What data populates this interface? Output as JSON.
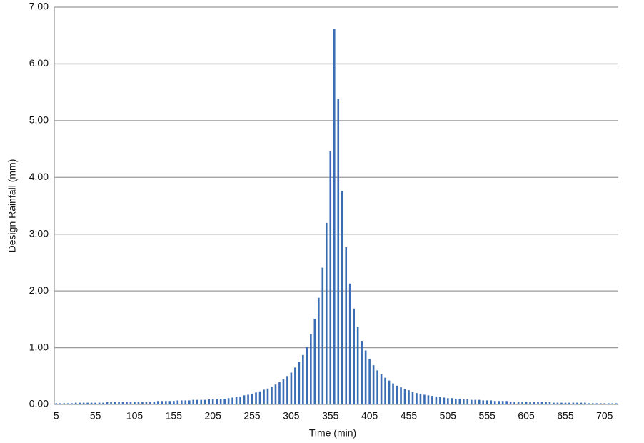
{
  "chart_data": {
    "type": "bar",
    "x_label": "Time (min)",
    "y_label": "Design Rainfall (mm)",
    "categories": [
      "5",
      null,
      null,
      null,
      null,
      null,
      null,
      null,
      null,
      null,
      "55",
      null,
      null,
      null,
      null,
      null,
      null,
      null,
      null,
      null,
      "105",
      null,
      null,
      null,
      null,
      null,
      null,
      null,
      null,
      null,
      "155",
      null,
      null,
      null,
      null,
      null,
      null,
      null,
      null,
      null,
      "205",
      null,
      null,
      null,
      null,
      null,
      null,
      null,
      null,
      null,
      "255",
      null,
      null,
      null,
      null,
      null,
      null,
      null,
      null,
      null,
      "305",
      null,
      null,
      null,
      null,
      null,
      null,
      null,
      null,
      null,
      "355",
      null,
      null,
      null,
      null,
      null,
      null,
      null,
      null,
      null,
      "405",
      null,
      null,
      null,
      null,
      null,
      null,
      null,
      null,
      null,
      "455",
      null,
      null,
      null,
      null,
      null,
      null,
      null,
      null,
      null,
      "505",
      null,
      null,
      null,
      null,
      null,
      null,
      null,
      null,
      null,
      "555",
      null,
      null,
      null,
      null,
      null,
      null,
      null,
      null,
      null,
      "605",
      null,
      null,
      null,
      null,
      null,
      null,
      null,
      null,
      null,
      "655",
      null,
      null,
      null,
      null,
      null,
      null,
      null,
      null,
      null,
      "705",
      null,
      null,
      null
    ],
    "values": [
      0.02,
      0.02,
      0.02,
      0.02,
      0.02,
      0.03,
      0.03,
      0.03,
      0.03,
      0.03,
      0.03,
      0.03,
      0.03,
      0.04,
      0.04,
      0.04,
      0.04,
      0.04,
      0.04,
      0.04,
      0.05,
      0.05,
      0.05,
      0.05,
      0.05,
      0.05,
      0.06,
      0.06,
      0.06,
      0.06,
      0.06,
      0.07,
      0.07,
      0.07,
      0.07,
      0.08,
      0.08,
      0.08,
      0.08,
      0.09,
      0.09,
      0.09,
      0.1,
      0.1,
      0.11,
      0.12,
      0.13,
      0.14,
      0.16,
      0.17,
      0.19,
      0.21,
      0.23,
      0.26,
      0.28,
      0.31,
      0.35,
      0.39,
      0.44,
      0.5,
      0.56,
      0.65,
      0.75,
      0.87,
      1.02,
      1.24,
      1.51,
      1.88,
      2.41,
      3.2,
      4.46,
      6.62,
      5.38,
      3.76,
      2.77,
      2.13,
      1.69,
      1.37,
      1.12,
      0.95,
      0.8,
      0.69,
      0.6,
      0.53,
      0.47,
      0.42,
      0.37,
      0.33,
      0.3,
      0.27,
      0.25,
      0.22,
      0.2,
      0.19,
      0.17,
      0.16,
      0.15,
      0.14,
      0.13,
      0.12,
      0.11,
      0.11,
      0.1,
      0.1,
      0.09,
      0.09,
      0.08,
      0.08,
      0.08,
      0.07,
      0.07,
      0.07,
      0.06,
      0.06,
      0.06,
      0.06,
      0.05,
      0.05,
      0.05,
      0.05,
      0.05,
      0.04,
      0.04,
      0.04,
      0.04,
      0.04,
      0.04,
      0.03,
      0.03,
      0.03,
      0.03,
      0.03,
      0.03,
      0.03,
      0.03,
      0.03,
      0.02,
      0.02,
      0.02,
      0.02,
      0.02,
      0.02,
      0.02,
      0.02
    ],
    "color": "#3a6db3",
    "ylim": [
      0,
      7
    ],
    "yticks": [
      {
        "value": 0,
        "label": "0.00"
      },
      {
        "value": 1,
        "label": "1.00"
      },
      {
        "value": 2,
        "label": "2.00"
      },
      {
        "value": 3,
        "label": "3.00"
      },
      {
        "value": 4,
        "label": "4.00"
      },
      {
        "value": 5,
        "label": "5.00"
      },
      {
        "value": 6,
        "label": "6.00"
      },
      {
        "value": 7,
        "label": "7.00"
      }
    ],
    "grid": true
  }
}
